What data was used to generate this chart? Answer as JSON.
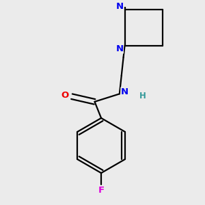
{
  "bg_color": "#ebebeb",
  "bond_color": "#000000",
  "line_width": 1.6,
  "atom_colors": {
    "N": "#0000ee",
    "O": "#ee0000",
    "F": "#dd00dd",
    "H": "#339999",
    "C": "#000000"
  },
  "font_size": 9.5,
  "fig_width": 3.0,
  "fig_height": 3.0,
  "dpi": 100
}
